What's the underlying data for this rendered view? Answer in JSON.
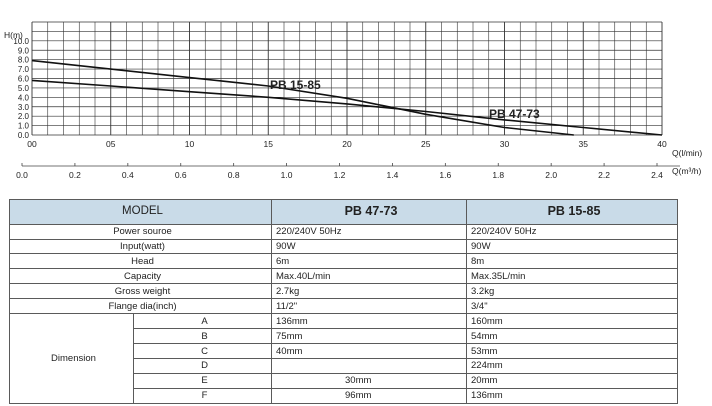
{
  "chart_data": {
    "type": "line",
    "y_axis": {
      "label": "H(m)",
      "ticks": [
        "0.0",
        "1.0",
        "2.0",
        "3.0",
        "4.0",
        "5.0",
        "6.0",
        "7.0",
        "8.0",
        "9.0",
        "10.0"
      ],
      "ylim": [
        0,
        12
      ]
    },
    "x_axis_lmin": {
      "label": "Q(l/min)",
      "ticks": [
        "00",
        "05",
        "10",
        "15",
        "20",
        "25",
        "30",
        "35",
        "40"
      ],
      "xlim": [
        0,
        40
      ]
    },
    "x_axis_m3h": {
      "label": "Q(m³/h)",
      "ticks": [
        "0.0",
        "0.2",
        "0.4",
        "0.6",
        "0.8",
        "1.0",
        "1.2",
        "1.4",
        "1.6",
        "1.8",
        "2.0",
        "2.2",
        "2.4"
      ],
      "xlim": [
        0,
        2.4
      ]
    },
    "series": [
      {
        "name": "PB 15-85",
        "x": [
          0,
          5,
          10,
          15,
          20,
          25,
          30,
          34.4
        ],
        "y": [
          7.9,
          7.0,
          6.1,
          5.2,
          3.9,
          2.2,
          0.8,
          0.0
        ]
      },
      {
        "name": "PB 47-73",
        "x": [
          0,
          5,
          10,
          15,
          20,
          25,
          30,
          35,
          40
        ],
        "y": [
          5.8,
          5.2,
          4.6,
          4.0,
          3.3,
          2.5,
          1.6,
          0.8,
          0.0
        ]
      }
    ],
    "grid": true,
    "colors": {
      "line": "#111111",
      "grid": "#333333"
    }
  },
  "table": {
    "header": {
      "model": "MODEL",
      "a": "PB 47-73",
      "b": "PB 15-85"
    },
    "rows": [
      {
        "label": "Power sourоe",
        "a": "220/240V 50Hz",
        "b": "220/240V 50Hz"
      },
      {
        "label": "Input(watt)",
        "a": "90W",
        "b": "90W"
      },
      {
        "label": "Head",
        "a": "6m",
        "b": "8m"
      },
      {
        "label": "Capacity",
        "a": "Max.40L/min",
        "b": "Max.35L/min"
      },
      {
        "label": "Gross weight",
        "a": "2.7kg",
        "b": "3.2kg"
      },
      {
        "label": "Flange dia(inch)",
        "a": "11/2\"",
        "b": "3/4\""
      }
    ],
    "dimension": {
      "label": "Dimension",
      "rows": [
        {
          "sub": "A",
          "a": "136mm",
          "b": "160mm"
        },
        {
          "sub": "B",
          "a": "75mm",
          "b": "54mm"
        },
        {
          "sub": "C",
          "a": "40mm",
          "b": "53mm"
        },
        {
          "sub": "D",
          "a": "",
          "b": "224mm"
        },
        {
          "sub": "E",
          "a": "30mm",
          "b": "20mm"
        },
        {
          "sub": "F",
          "a": "96mm",
          "b": "136mm"
        }
      ]
    }
  }
}
